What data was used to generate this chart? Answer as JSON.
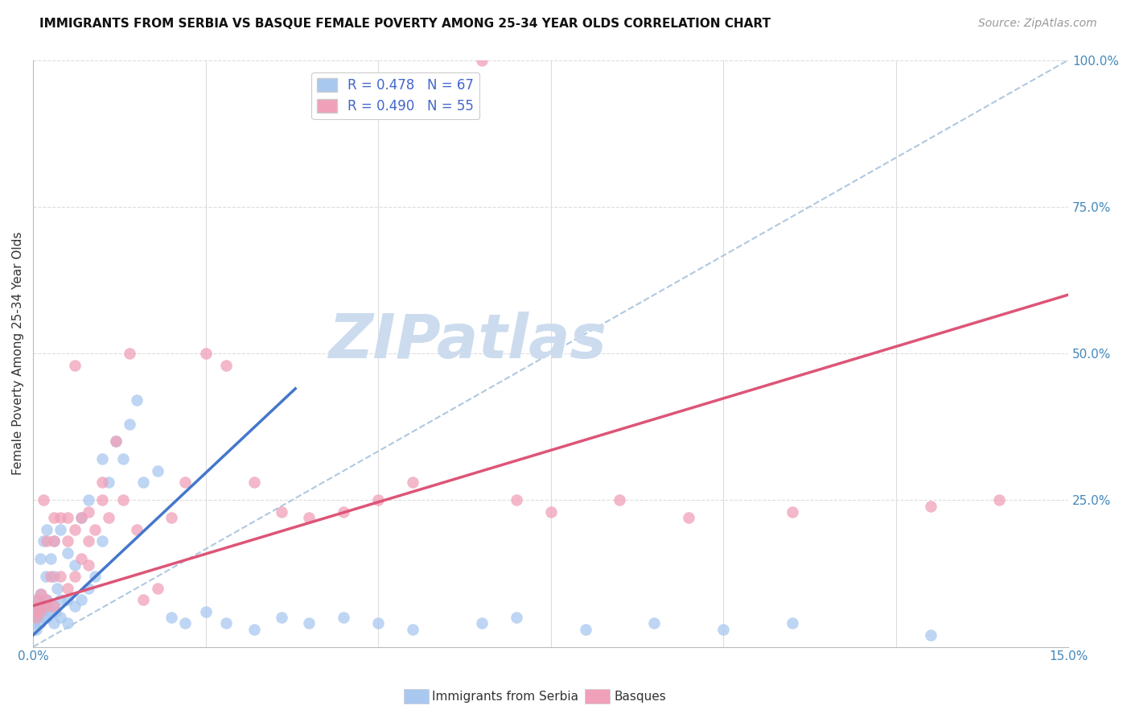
{
  "title": "IMMIGRANTS FROM SERBIA VS BASQUE FEMALE POVERTY AMONG 25-34 YEAR OLDS CORRELATION CHART",
  "source": "Source: ZipAtlas.com",
  "ylabel_left": "Female Poverty Among 25-34 Year Olds",
  "x_min": 0.0,
  "x_max": 0.15,
  "y_min": 0.0,
  "y_max": 1.0,
  "legend_label_1": "R = 0.478   N = 67",
  "legend_label_2": "R = 0.490   N = 55",
  "serbia_color": "#a8c8f0",
  "basque_color": "#f0a0b8",
  "serbia_line_color": "#4477cc",
  "basque_line_color": "#dd5577",
  "dashed_line_color": "#b0c8e0",
  "serbia_line_x0": 0.0,
  "serbia_line_y0": 0.02,
  "serbia_line_x1": 0.038,
  "serbia_line_y1": 0.44,
  "basque_line_x0": 0.0,
  "basque_line_y0": 0.07,
  "basque_line_x1": 0.15,
  "basque_line_y1": 0.6,
  "dash_line_x0": 0.0,
  "dash_line_y0": 0.0,
  "dash_line_x1": 0.15,
  "dash_line_y1": 1.0,
  "serbia_scatter_x": [
    0.0001,
    0.0002,
    0.0003,
    0.0004,
    0.0005,
    0.0006,
    0.0007,
    0.0008,
    0.001,
    0.001,
    0.001,
    0.0012,
    0.0013,
    0.0015,
    0.0015,
    0.0018,
    0.002,
    0.002,
    0.002,
    0.0022,
    0.0025,
    0.0025,
    0.003,
    0.003,
    0.003,
    0.003,
    0.0032,
    0.0035,
    0.004,
    0.004,
    0.004,
    0.005,
    0.005,
    0.005,
    0.006,
    0.006,
    0.007,
    0.007,
    0.008,
    0.008,
    0.009,
    0.01,
    0.01,
    0.011,
    0.012,
    0.013,
    0.014,
    0.015,
    0.016,
    0.018,
    0.02,
    0.022,
    0.025,
    0.028,
    0.032,
    0.036,
    0.04,
    0.045,
    0.05,
    0.055,
    0.065,
    0.07,
    0.08,
    0.09,
    0.1,
    0.11,
    0.13
  ],
  "serbia_scatter_y": [
    0.05,
    0.04,
    0.06,
    0.03,
    0.07,
    0.05,
    0.08,
    0.06,
    0.04,
    0.09,
    0.15,
    0.07,
    0.06,
    0.05,
    0.18,
    0.12,
    0.05,
    0.08,
    0.2,
    0.07,
    0.06,
    0.15,
    0.04,
    0.07,
    0.12,
    0.18,
    0.06,
    0.1,
    0.05,
    0.08,
    0.2,
    0.04,
    0.08,
    0.16,
    0.07,
    0.14,
    0.08,
    0.22,
    0.1,
    0.25,
    0.12,
    0.18,
    0.32,
    0.28,
    0.35,
    0.32,
    0.38,
    0.42,
    0.28,
    0.3,
    0.05,
    0.04,
    0.06,
    0.04,
    0.03,
    0.05,
    0.04,
    0.05,
    0.04,
    0.03,
    0.04,
    0.05,
    0.03,
    0.04,
    0.03,
    0.04,
    0.02
  ],
  "basque_scatter_x": [
    0.0002,
    0.0004,
    0.0006,
    0.0008,
    0.001,
    0.0012,
    0.0015,
    0.0018,
    0.002,
    0.002,
    0.0025,
    0.003,
    0.003,
    0.003,
    0.004,
    0.004,
    0.005,
    0.005,
    0.005,
    0.006,
    0.006,
    0.006,
    0.007,
    0.007,
    0.008,
    0.008,
    0.008,
    0.009,
    0.01,
    0.01,
    0.011,
    0.012,
    0.013,
    0.014,
    0.015,
    0.016,
    0.018,
    0.02,
    0.022,
    0.025,
    0.028,
    0.032,
    0.036,
    0.04,
    0.045,
    0.05,
    0.055,
    0.065,
    0.07,
    0.075,
    0.085,
    0.095,
    0.11,
    0.13,
    0.14
  ],
  "basque_scatter_y": [
    0.06,
    0.05,
    0.08,
    0.07,
    0.06,
    0.09,
    0.25,
    0.08,
    0.18,
    0.07,
    0.12,
    0.22,
    0.18,
    0.07,
    0.22,
    0.12,
    0.18,
    0.22,
    0.1,
    0.2,
    0.12,
    0.48,
    0.22,
    0.15,
    0.23,
    0.18,
    0.14,
    0.2,
    0.25,
    0.28,
    0.22,
    0.35,
    0.25,
    0.5,
    0.2,
    0.08,
    0.1,
    0.22,
    0.28,
    0.5,
    0.48,
    0.28,
    0.23,
    0.22,
    0.23,
    0.25,
    0.28,
    1.0,
    0.25,
    0.23,
    0.25,
    0.22,
    0.23,
    0.24,
    0.25
  ],
  "background_color": "#ffffff",
  "watermark_text": "ZIPatlas",
  "watermark_color": "#ccdcee",
  "legend_bottom_1": "Immigrants from Serbia",
  "legend_bottom_2": "Basques",
  "title_fontsize": 11,
  "axis_tick_color": "#4488bb",
  "ylabel_color": "#333333"
}
